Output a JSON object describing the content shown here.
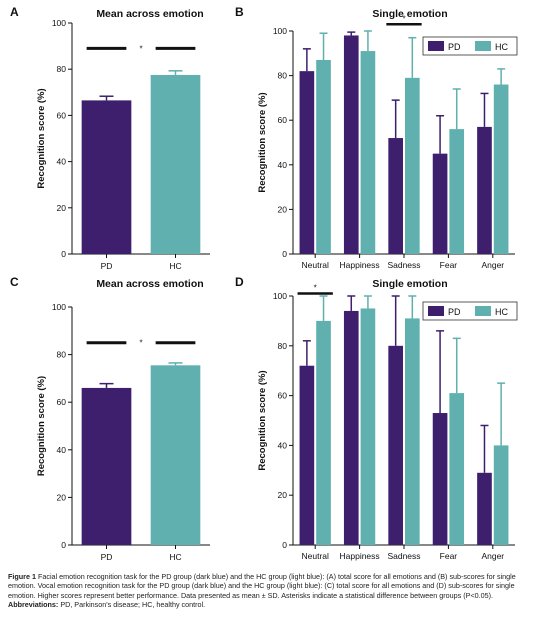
{
  "panels": [
    {
      "letter": "A",
      "title": "Mean across emotion"
    },
    {
      "letter": "B",
      "title": "Single emotion"
    },
    {
      "letter": "C",
      "title": "Mean across emotion"
    },
    {
      "letter": "D",
      "title": "Single emotion"
    }
  ],
  "colors": {
    "pd": "#3d1f6e",
    "hc": "#5fb0ae",
    "err_pd": "#3d1f6e",
    "err_hc": "#5fb0ae"
  },
  "chart_data": [
    {
      "type": "bar",
      "panel": "A",
      "title": "Mean across emotion",
      "ylabel": "Recognition score (%)",
      "categories": [
        "PD",
        "HC"
      ],
      "values": [
        66.5,
        77.5
      ],
      "errors": [
        1.8,
        1.8
      ],
      "ylim": [
        0,
        100
      ],
      "yticks": [
        0,
        20,
        40,
        60,
        80,
        100
      ],
      "significance": [
        {
          "from": 0,
          "to": 1,
          "level": 89,
          "label": "*"
        }
      ]
    },
    {
      "type": "bar",
      "panel": "B",
      "title": "Single emotion",
      "ylabel": "Recognition score (%)",
      "categories": [
        "Neutral",
        "Happiness",
        "Sadness",
        "Fear",
        "Anger"
      ],
      "series": [
        {
          "name": "PD",
          "values": [
            82,
            98,
            52,
            45,
            57
          ],
          "errors": [
            10,
            1.5,
            17,
            17,
            15
          ]
        },
        {
          "name": "HC",
          "values": [
            87,
            91,
            79,
            56,
            76
          ],
          "errors": [
            12,
            9,
            18,
            18,
            7
          ]
        }
      ],
      "ylim": [
        0,
        100
      ],
      "yticks": [
        0,
        20,
        40,
        60,
        80,
        100
      ],
      "legend": "top-right",
      "significance": [
        {
          "category": 2,
          "level": 103,
          "label": "*"
        }
      ]
    },
    {
      "type": "bar",
      "panel": "C",
      "title": "Mean across emotion",
      "ylabel": "Recognition score (%)",
      "categories": [
        "PD",
        "HC"
      ],
      "values": [
        66,
        75.5
      ],
      "errors": [
        1.8,
        1
      ],
      "ylim": [
        0,
        100
      ],
      "yticks": [
        0,
        20,
        40,
        60,
        80,
        100
      ],
      "significance": [
        {
          "from": 0,
          "to": 1,
          "level": 85,
          "label": "*"
        }
      ]
    },
    {
      "type": "bar",
      "panel": "D",
      "title": "Single emotion",
      "ylabel": "Recognition score (%)",
      "categories": [
        "Neutral",
        "Happiness",
        "Sadness",
        "Fear",
        "Anger"
      ],
      "series": [
        {
          "name": "PD",
          "values": [
            72,
            94,
            80,
            53,
            29
          ],
          "errors": [
            10,
            6,
            20,
            33,
            19
          ]
        },
        {
          "name": "HC",
          "values": [
            90,
            95,
            91,
            61,
            40
          ],
          "errors": [
            10,
            5,
            9,
            22,
            25
          ]
        }
      ],
      "ylim": [
        0,
        100
      ],
      "yticks": [
        0,
        20,
        40,
        60,
        80,
        100
      ],
      "legend": "top-right",
      "significance": [
        {
          "category": 0,
          "level": 101,
          "label": "*"
        }
      ]
    }
  ],
  "caption": {
    "fig_label": "Figure 1",
    "text": "Facial emotion recognition task for the PD group (dark blue) and the HC group (light blue): (A) total score for all emotions and (B) sub-scores for single emotion. Vocal emotion recognition task for the PD group (dark blue) and the HC group (light blue): (C) total score for all emotions and (D) sub-scores for single emotion. Higher scores represent better performance. Data presented as mean ± SD. Asterisks indicate a statistical difference between groups (P<0.05).",
    "abbr_label": "Abbreviations:",
    "abbr_text": "PD, Parkinson's disease; HC, healthy control."
  }
}
